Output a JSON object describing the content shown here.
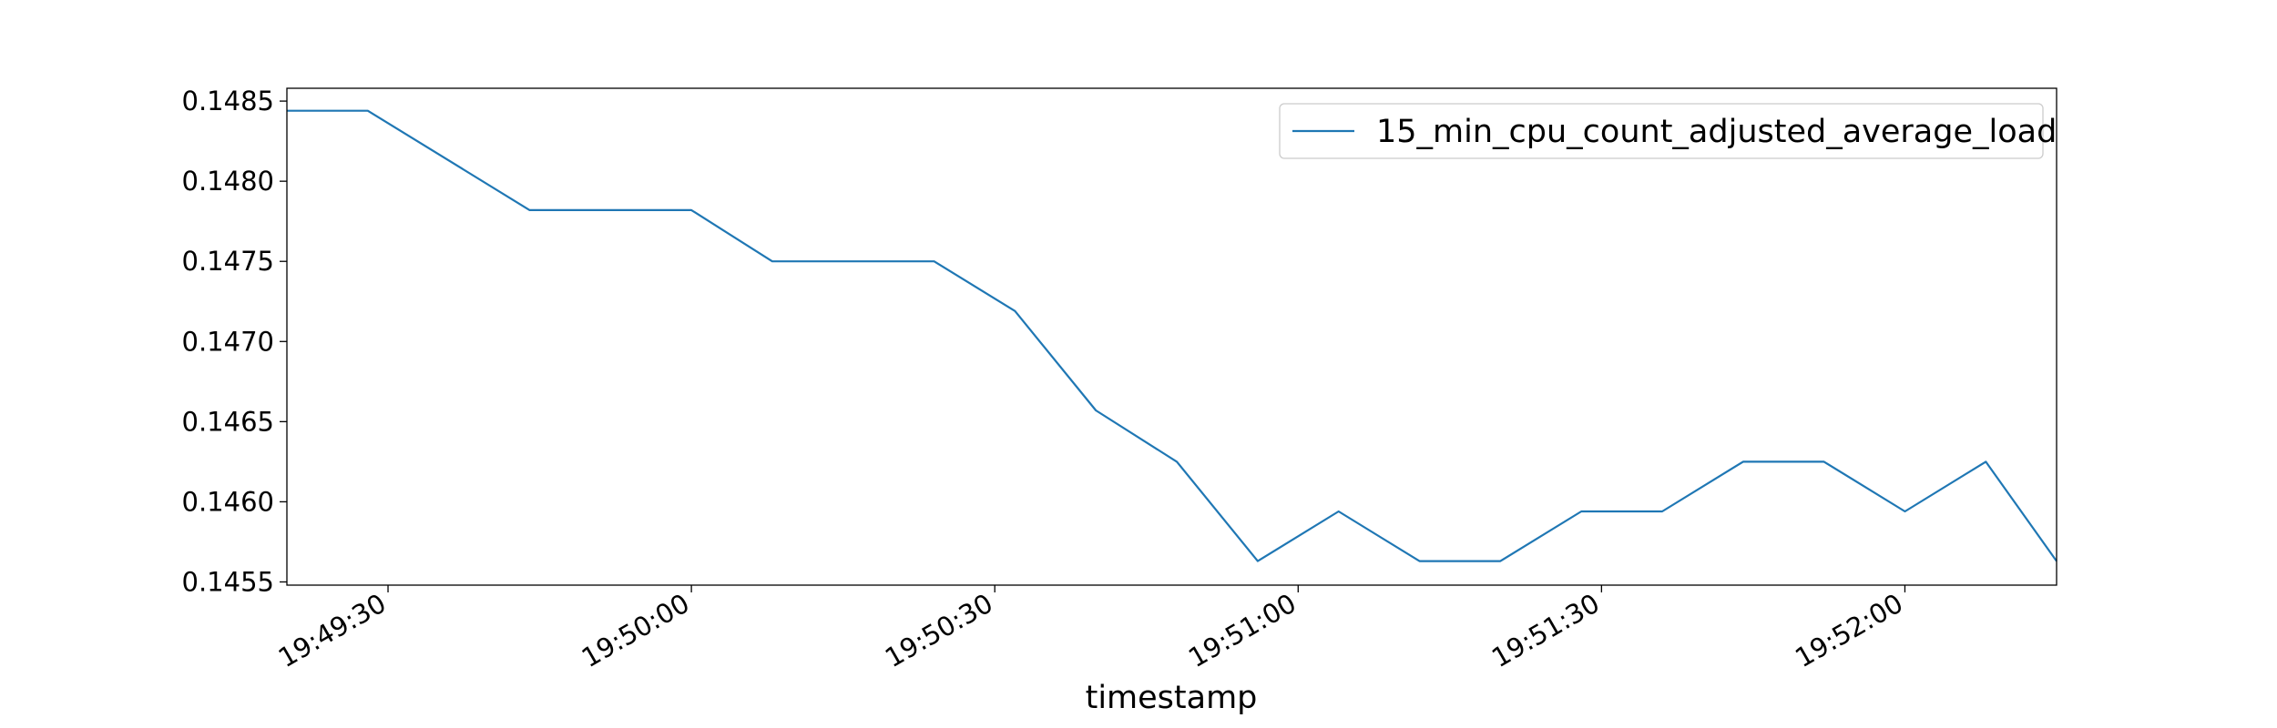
{
  "chart_data": {
    "type": "line",
    "title": "",
    "xlabel": "timestamp",
    "ylabel": "",
    "x_tick_labels": [
      "19:49:30",
      "19:50:00",
      "19:50:30",
      "19:51:00",
      "19:51:30",
      "19:52:00"
    ],
    "x_tick_times": [
      "19:49:30",
      "19:50:00",
      "19:50:30",
      "19:51:00",
      "19:51:30",
      "19:52:00"
    ],
    "xlim": [
      "19:49:20",
      "19:52:15"
    ],
    "y_tick_labels": [
      "0.1455",
      "0.1460",
      "0.1465",
      "0.1470",
      "0.1475",
      "0.1480",
      "0.1485"
    ],
    "y_ticks": [
      0.1455,
      0.146,
      0.1465,
      0.147,
      0.1475,
      0.148,
      0.1485
    ],
    "ylim": [
      0.14548,
      0.14858
    ],
    "grid": false,
    "legend_position": "upper-right",
    "series": [
      {
        "name": "15_min_cpu_count_adjusted_average_load",
        "color": "#1f77b4",
        "points": [
          {
            "x": "19:49:20",
            "y": 0.14844
          },
          {
            "x": "19:49:28",
            "y": 0.14844
          },
          {
            "x": "19:49:44",
            "y": 0.14782
          },
          {
            "x": "19:50:00",
            "y": 0.14782
          },
          {
            "x": "19:50:08",
            "y": 0.1475
          },
          {
            "x": "19:50:24",
            "y": 0.1475
          },
          {
            "x": "19:50:32",
            "y": 0.14719
          },
          {
            "x": "19:50:40",
            "y": 0.14657
          },
          {
            "x": "19:50:48",
            "y": 0.14625
          },
          {
            "x": "19:50:56",
            "y": 0.14563
          },
          {
            "x": "19:51:04",
            "y": 0.14594
          },
          {
            "x": "19:51:12",
            "y": 0.14563
          },
          {
            "x": "19:51:20",
            "y": 0.14563
          },
          {
            "x": "19:51:28",
            "y": 0.14594
          },
          {
            "x": "19:51:36",
            "y": 0.14594
          },
          {
            "x": "19:51:44",
            "y": 0.14625
          },
          {
            "x": "19:51:52",
            "y": 0.14625
          },
          {
            "x": "19:52:00",
            "y": 0.14594
          },
          {
            "x": "19:52:08",
            "y": 0.14625
          },
          {
            "x": "19:52:15",
            "y": 0.14563
          }
        ]
      }
    ]
  }
}
